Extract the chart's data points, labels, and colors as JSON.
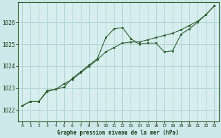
{
  "background_color": "#cce8e8",
  "plot_bg_color": "#d6eeee",
  "grid_color": "#b0d0d0",
  "line_color": "#2d5a2d",
  "xlabel": "Graphe pression niveau de la mer (hPa)",
  "ylim": [
    1021.5,
    1026.9
  ],
  "xlim": [
    -0.5,
    23.5
  ],
  "yticks": [
    1022,
    1023,
    1024,
    1025,
    1026
  ],
  "xticks": [
    0,
    1,
    2,
    3,
    4,
    5,
    6,
    7,
    8,
    9,
    10,
    11,
    12,
    13,
    14,
    15,
    16,
    17,
    18,
    19,
    20,
    21,
    22,
    23
  ],
  "series1_x": [
    0,
    1,
    2,
    3,
    4,
    5,
    6,
    7,
    8,
    9,
    10,
    11,
    12,
    13,
    14,
    15,
    16,
    17,
    18,
    19,
    20,
    21,
    22,
    23
  ],
  "series1_y": [
    1022.2,
    1022.4,
    1022.4,
    1022.9,
    1022.95,
    1023.05,
    1023.45,
    1023.75,
    1024.05,
    1024.35,
    1025.3,
    1025.7,
    1025.75,
    1025.25,
    1025.0,
    1025.05,
    1025.05,
    1024.65,
    1024.7,
    1025.45,
    1025.7,
    1026.0,
    1026.35,
    1026.75
  ],
  "series2_x": [
    0,
    1,
    2,
    3,
    4,
    5,
    6,
    7,
    8,
    9,
    10,
    11,
    12,
    13,
    14,
    15,
    16,
    17,
    18,
    19,
    20,
    21,
    22,
    23
  ],
  "series2_y": [
    1022.2,
    1022.4,
    1022.4,
    1022.85,
    1022.95,
    1023.2,
    1023.4,
    1023.7,
    1024.0,
    1024.3,
    1024.65,
    1024.85,
    1025.05,
    1025.1,
    1025.1,
    1025.2,
    1025.3,
    1025.4,
    1025.5,
    1025.65,
    1025.85,
    1026.05,
    1026.35,
    1026.75
  ]
}
